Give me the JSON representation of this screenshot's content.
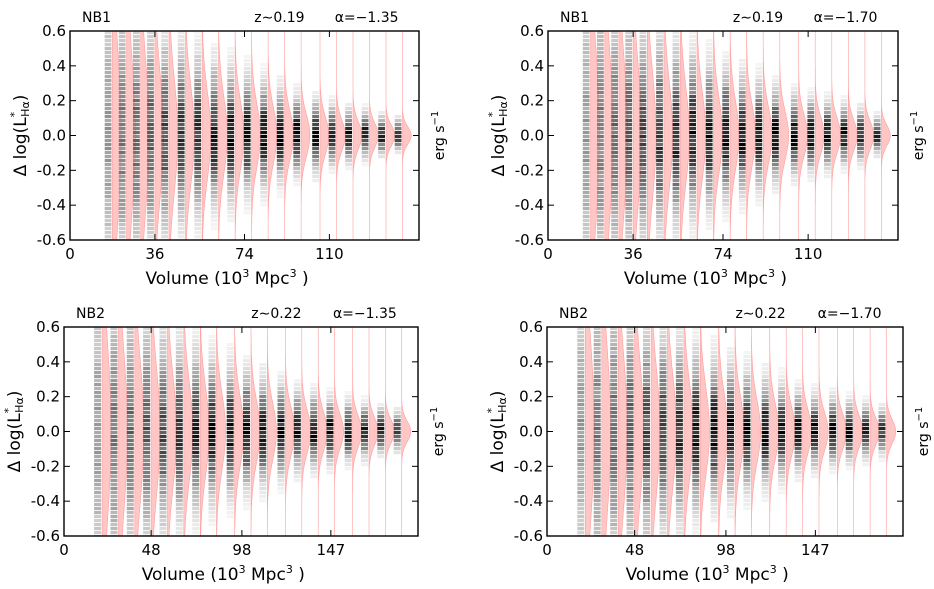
{
  "chart_data": [
    {
      "type": "heatmap",
      "overlay": "violin",
      "sample": "NB1",
      "redshift_label": "z∼0.19",
      "alpha_label": "α=−1.35",
      "xlabel_text": "Volume (10",
      "xlabel_sup": "3",
      "xlabel_mid": "  Mpc",
      "xlabel_sup2": "3",
      "xlabel_end": " )",
      "ylabel_main": "Δ log(L",
      "ylabel_sup": "*",
      "ylabel_sub": "Hα",
      "ylabel_close": ")",
      "unit_main": "erg s",
      "unit_sup": "−1",
      "xlim": [
        0,
        148
      ],
      "ylim": [
        -0.6,
        0.6
      ],
      "xticks": [
        0,
        36,
        74,
        110
      ],
      "xtick_labels": [
        "0",
        "36",
        "74",
        "110"
      ],
      "yticks": [
        -0.6,
        -0.4,
        -0.2,
        0.0,
        0.2,
        0.4,
        0.6
      ],
      "ytick_labels": [
        "-0.6",
        "-0.4",
        "-0.2",
        "0.0",
        "0.2",
        "0.4",
        "0.6"
      ],
      "violins": [
        {
          "x": 18,
          "sigma": 0.5,
          "amp": 0.5
        },
        {
          "x": 24,
          "sigma": 0.45,
          "amp": 1.5
        },
        {
          "x": 30,
          "sigma": 0.4,
          "amp": 2.0
        },
        {
          "x": 36,
          "sigma": 0.35,
          "amp": 2.5
        },
        {
          "x": 42,
          "sigma": 0.32,
          "amp": 3.0
        },
        {
          "x": 49,
          "sigma": 0.28,
          "amp": 3.5
        },
        {
          "x": 56,
          "sigma": 0.25,
          "amp": 4.0
        },
        {
          "x": 63,
          "sigma": 0.22,
          "amp": 4.5
        },
        {
          "x": 70,
          "sigma": 0.2,
          "amp": 4.8
        },
        {
          "x": 77,
          "sigma": 0.18,
          "amp": 5.0
        },
        {
          "x": 84,
          "sigma": 0.16,
          "amp": 5.0
        },
        {
          "x": 91,
          "sigma": 0.14,
          "amp": 5.0
        },
        {
          "x": 98,
          "sigma": 0.12,
          "amp": 5.0
        },
        {
          "x": 106,
          "sigma": 0.11,
          "amp": 5.0
        },
        {
          "x": 113,
          "sigma": 0.09,
          "amp": 5.0
        },
        {
          "x": 120,
          "sigma": 0.08,
          "amp": 5.0
        },
        {
          "x": 127,
          "sigma": 0.07,
          "amp": 4.8
        },
        {
          "x": 134,
          "sigma": 0.06,
          "amp": 4.5
        },
        {
          "x": 141,
          "sigma": 0.05,
          "amp": 4.0
        }
      ]
    },
    {
      "type": "heatmap",
      "overlay": "violin",
      "sample": "NB1",
      "redshift_label": "z∼0.19",
      "alpha_label": "α=−1.70",
      "xlabel_text": "Volume (10",
      "xlabel_sup": "3",
      "xlabel_mid": "  Mpc",
      "xlabel_sup2": "3",
      "xlabel_end": " )",
      "ylabel_main": "Δ log(L",
      "ylabel_sup": "*",
      "ylabel_sub": "Hα",
      "ylabel_close": ")",
      "unit_main": "erg s",
      "unit_sup": "−1",
      "xlim": [
        0,
        148
      ],
      "ylim": [
        -0.6,
        0.6
      ],
      "xticks": [
        0,
        36,
        74,
        110
      ],
      "xtick_labels": [
        "0",
        "36",
        "74",
        "110"
      ],
      "yticks": [
        -0.6,
        -0.4,
        -0.2,
        0.0,
        0.2,
        0.4,
        0.6
      ],
      "ytick_labels": [
        "-0.6",
        "-0.4",
        "-0.2",
        "0.0",
        "0.2",
        "0.4",
        "0.6"
      ],
      "violins": [
        {
          "x": 18,
          "sigma": 0.5,
          "amp": 0.5
        },
        {
          "x": 24,
          "sigma": 0.45,
          "amp": 1.5
        },
        {
          "x": 30,
          "sigma": 0.42,
          "amp": 2.0
        },
        {
          "x": 36,
          "sigma": 0.38,
          "amp": 2.5
        },
        {
          "x": 42,
          "sigma": 0.35,
          "amp": 3.0
        },
        {
          "x": 49,
          "sigma": 0.31,
          "amp": 3.5
        },
        {
          "x": 56,
          "sigma": 0.28,
          "amp": 4.0
        },
        {
          "x": 63,
          "sigma": 0.25,
          "amp": 4.5
        },
        {
          "x": 70,
          "sigma": 0.22,
          "amp": 4.8
        },
        {
          "x": 77,
          "sigma": 0.2,
          "amp": 5.0
        },
        {
          "x": 84,
          "sigma": 0.18,
          "amp": 5.0
        },
        {
          "x": 91,
          "sigma": 0.16,
          "amp": 5.0
        },
        {
          "x": 98,
          "sigma": 0.14,
          "amp": 5.0
        },
        {
          "x": 106,
          "sigma": 0.12,
          "amp": 5.0
        },
        {
          "x": 113,
          "sigma": 0.11,
          "amp": 5.0
        },
        {
          "x": 120,
          "sigma": 0.1,
          "amp": 5.0
        },
        {
          "x": 127,
          "sigma": 0.09,
          "amp": 4.8
        },
        {
          "x": 134,
          "sigma": 0.08,
          "amp": 4.5
        },
        {
          "x": 141,
          "sigma": 0.06,
          "amp": 4.0
        }
      ]
    },
    {
      "type": "heatmap",
      "overlay": "violin",
      "sample": "NB2",
      "redshift_label": "z∼0.22",
      "alpha_label": "α=−1.35",
      "xlabel_text": "Volume (10",
      "xlabel_sup": "3",
      "xlabel_mid": "  Mpc",
      "xlabel_sup2": "3",
      "xlabel_end": " )",
      "ylabel_main": "Δ log(L",
      "ylabel_sup": "*",
      "ylabel_sub": "Hα",
      "ylabel_close": ")",
      "unit_main": "erg s",
      "unit_sup": "−1",
      "xlim": [
        0,
        195
      ],
      "ylim": [
        -0.6,
        0.6
      ],
      "xticks": [
        0,
        48,
        98,
        147
      ],
      "xtick_labels": [
        "0",
        "48",
        "98",
        "147"
      ],
      "yticks": [
        -0.6,
        -0.4,
        -0.2,
        0.0,
        0.2,
        0.4,
        0.6
      ],
      "ytick_labels": [
        "-0.6",
        "-0.4",
        "-0.2",
        "0.0",
        "0.2",
        "0.4",
        "0.6"
      ],
      "violins": [
        {
          "x": 21,
          "sigma": 0.5,
          "amp": 0.5
        },
        {
          "x": 30,
          "sigma": 0.45,
          "amp": 1.5
        },
        {
          "x": 39,
          "sigma": 0.4,
          "amp": 2.0
        },
        {
          "x": 48,
          "sigma": 0.36,
          "amp": 2.5
        },
        {
          "x": 57,
          "sigma": 0.32,
          "amp": 3.0
        },
        {
          "x": 66,
          "sigma": 0.28,
          "amp": 3.5
        },
        {
          "x": 75,
          "sigma": 0.25,
          "amp": 4.0
        },
        {
          "x": 84,
          "sigma": 0.22,
          "amp": 4.5
        },
        {
          "x": 94,
          "sigma": 0.2,
          "amp": 4.8
        },
        {
          "x": 103,
          "sigma": 0.18,
          "amp": 5.0
        },
        {
          "x": 112,
          "sigma": 0.16,
          "amp": 5.0
        },
        {
          "x": 122,
          "sigma": 0.14,
          "amp": 5.0
        },
        {
          "x": 131,
          "sigma": 0.12,
          "amp": 5.0
        },
        {
          "x": 140,
          "sigma": 0.11,
          "amp": 5.0
        },
        {
          "x": 149,
          "sigma": 0.1,
          "amp": 5.0
        },
        {
          "x": 159,
          "sigma": 0.09,
          "amp": 5.0
        },
        {
          "x": 168,
          "sigma": 0.08,
          "amp": 4.8
        },
        {
          "x": 177,
          "sigma": 0.07,
          "amp": 4.5
        },
        {
          "x": 186,
          "sigma": 0.06,
          "amp": 4.0
        }
      ]
    },
    {
      "type": "heatmap",
      "overlay": "violin",
      "sample": "NB2",
      "redshift_label": "z∼0.22",
      "alpha_label": "α=−1.70",
      "xlabel_text": "Volume (10",
      "xlabel_sup": "3",
      "xlabel_mid": "  Mpc",
      "xlabel_sup2": "3",
      "xlabel_end": " )",
      "ylabel_main": "Δ log(L",
      "ylabel_sup": "*",
      "ylabel_sub": "Hα",
      "ylabel_close": ")",
      "unit_main": "erg s",
      "unit_sup": "−1",
      "xlim": [
        0,
        195
      ],
      "ylim": [
        -0.6,
        0.6
      ],
      "xticks": [
        0,
        48,
        98,
        147
      ],
      "xtick_labels": [
        "0",
        "48",
        "98",
        "147"
      ],
      "yticks": [
        -0.6,
        -0.4,
        -0.2,
        0.0,
        0.2,
        0.4,
        0.6
      ],
      "ytick_labels": [
        "-0.6",
        "-0.4",
        "-0.2",
        "0.0",
        "0.2",
        "0.4",
        "0.6"
      ],
      "violins": [
        {
          "x": 21,
          "sigma": 0.5,
          "amp": 0.5
        },
        {
          "x": 30,
          "sigma": 0.47,
          "amp": 1.5
        },
        {
          "x": 39,
          "sigma": 0.43,
          "amp": 2.0
        },
        {
          "x": 48,
          "sigma": 0.39,
          "amp": 2.5
        },
        {
          "x": 57,
          "sigma": 0.35,
          "amp": 3.0
        },
        {
          "x": 66,
          "sigma": 0.31,
          "amp": 3.5
        },
        {
          "x": 75,
          "sigma": 0.28,
          "amp": 4.0
        },
        {
          "x": 84,
          "sigma": 0.25,
          "amp": 4.5
        },
        {
          "x": 94,
          "sigma": 0.22,
          "amp": 4.8
        },
        {
          "x": 103,
          "sigma": 0.2,
          "amp": 5.0
        },
        {
          "x": 112,
          "sigma": 0.18,
          "amp": 5.0
        },
        {
          "x": 122,
          "sigma": 0.16,
          "amp": 5.0
        },
        {
          "x": 131,
          "sigma": 0.14,
          "amp": 5.0
        },
        {
          "x": 140,
          "sigma": 0.12,
          "amp": 5.0
        },
        {
          "x": 149,
          "sigma": 0.11,
          "amp": 5.0
        },
        {
          "x": 159,
          "sigma": 0.1,
          "amp": 5.0
        },
        {
          "x": 168,
          "sigma": 0.09,
          "amp": 4.8
        },
        {
          "x": 177,
          "sigma": 0.08,
          "amp": 4.5
        },
        {
          "x": 186,
          "sigma": 0.07,
          "amp": 4.0
        }
      ]
    }
  ],
  "colors": {
    "violin_fill": "#ffc4c4",
    "violin_edge": "#ff9a9a",
    "heat_dark": "#000000",
    "axes": "#000000",
    "background": "#ffffff"
  }
}
